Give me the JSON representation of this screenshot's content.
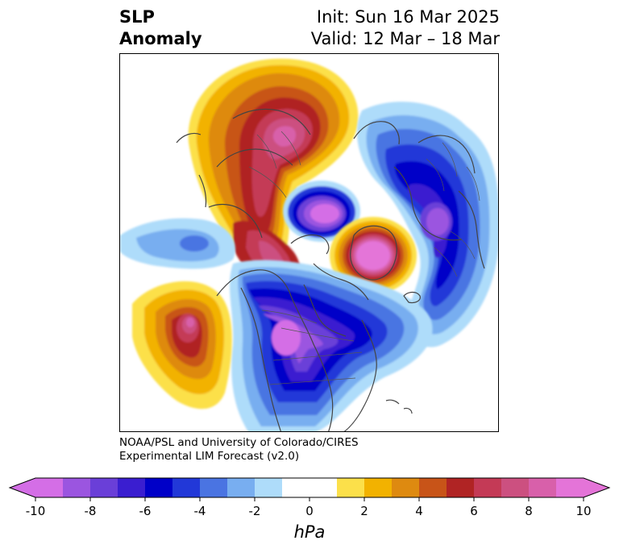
{
  "header": {
    "title_line1": "SLP",
    "title_line2": "Anomaly",
    "init_text": "Init: Sun 16 Mar 2025",
    "valid_text": "Valid: 12 Mar – 18 Mar"
  },
  "credit": {
    "line1": "NOAA/PSL and University of Colorado/CIRES",
    "line2": "Experimental LIM Forecast (v2.0)"
  },
  "colorbar": {
    "unit": "hPa",
    "ticks": [
      "-10",
      "-8",
      "-6",
      "-4",
      "-2",
      "0",
      "2",
      "4",
      "6",
      "8",
      "10"
    ],
    "colors": [
      "#d46ee6",
      "#9b55e0",
      "#6a3fd8",
      "#3a1ed0",
      "#0000c8",
      "#2238d8",
      "#4a74e2",
      "#78aef0",
      "#aedcfa",
      "#ffffff",
      "#ffffff",
      "#fce04a",
      "#f2b200",
      "#de8a10",
      "#c85418",
      "#b02424",
      "#c43a56",
      "#cc5080",
      "#d860aa",
      "#e474d8"
    ]
  },
  "map": {
    "anomalies": [
      {
        "name": "positive-anomaly-siberia-arctic",
        "level": 8
      },
      {
        "name": "negative-anomaly-beaufort",
        "level": -10
      },
      {
        "name": "positive-anomaly-greenland",
        "level": 10
      },
      {
        "name": "negative-anomaly-north-atlantic",
        "level": -8
      },
      {
        "name": "negative-anomaly-north-america",
        "level": -10
      },
      {
        "name": "positive-anomaly-north-pacific",
        "level": 8
      }
    ]
  }
}
